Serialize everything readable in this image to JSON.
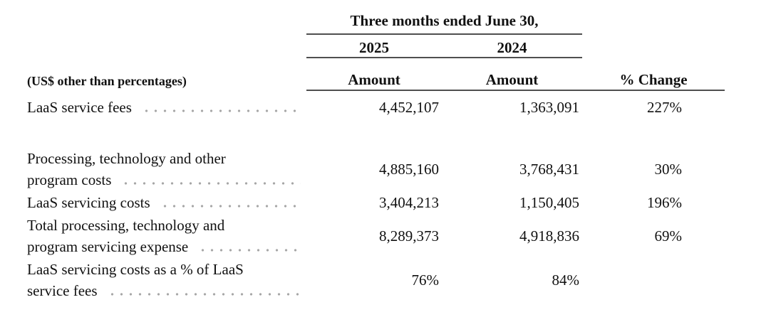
{
  "table": {
    "period_header": "Three months ended June 30,",
    "years": [
      "2025",
      "2024"
    ],
    "unit_note": "(US$ other than percentages)",
    "columns": {
      "amount_2025": "Amount",
      "amount_2024": "Amount",
      "change": "% Change"
    },
    "rows": [
      {
        "l1": "",
        "l2": "LaaS service fees",
        "a25": "4,452,107",
        "a24": "1,363,091",
        "chg": "227%"
      },
      {
        "l1": "Processing, technology and other",
        "l2": "program costs",
        "a25": "4,885,160",
        "a24": "3,768,431",
        "chg": "30%"
      },
      {
        "l1": "",
        "l2": "LaaS servicing costs",
        "a25": "3,404,213",
        "a24": "1,150,405",
        "chg": "196%"
      },
      {
        "l1": "Total processing, technology and",
        "l2": "program servicing expense",
        "a25": "8,289,373",
        "a24": "4,918,836",
        "chg": "69%"
      },
      {
        "l1": "LaaS servicing costs as a % of LaaS",
        "l2": "service fees",
        "a25": "76%",
        "a24": "84%",
        "chg": ""
      }
    ]
  }
}
